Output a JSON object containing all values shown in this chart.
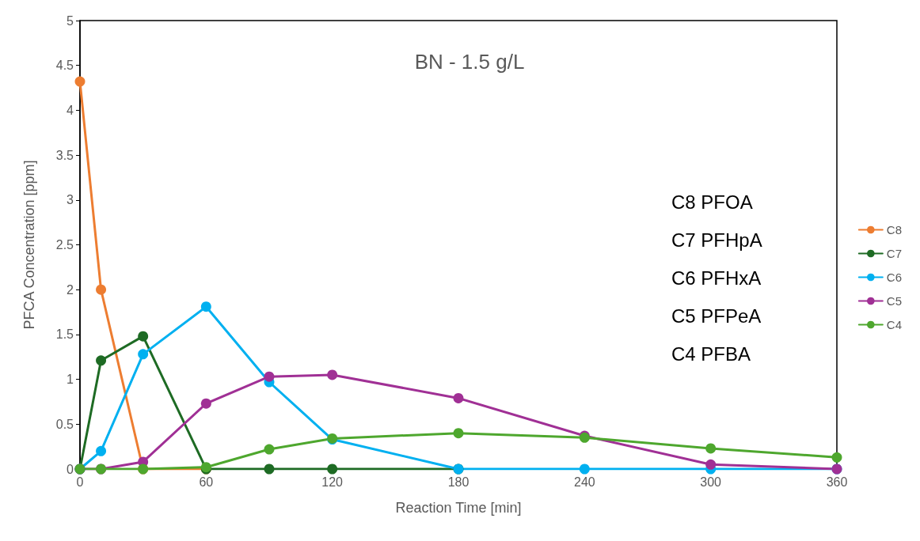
{
  "chart_data": {
    "type": "line",
    "title": "BN - 1.5 g/L",
    "xlabel": "Reaction Time [min]",
    "ylabel": "PFCA Concentration [ppm]",
    "x": [
      0,
      10,
      30,
      60,
      90,
      120,
      180,
      240,
      300,
      360
    ],
    "xlim": [
      0,
      360
    ],
    "xticks": [
      0,
      60,
      120,
      180,
      240,
      300,
      360
    ],
    "ylim": [
      0,
      5
    ],
    "yticks": [
      0,
      0.5,
      1,
      1.5,
      2,
      2.5,
      3,
      3.5,
      4,
      4.5,
      5
    ],
    "grid": false,
    "legend": "right",
    "marker": "circle",
    "line_style": "solid",
    "annotations": [
      "C8 PFOA",
      "C7 PFHpA",
      "C6 PFHxA",
      "C5 PFPeA",
      "C4 PFBA"
    ],
    "series": [
      {
        "name": "C8",
        "color": "#ed7d31",
        "values": [
          4.32,
          2.0,
          0,
          0,
          null,
          null,
          null,
          null,
          null,
          null
        ]
      },
      {
        "name": "C7",
        "color": "#1e6b24",
        "values": [
          0,
          1.21,
          1.48,
          0,
          0,
          0,
          0,
          null,
          null,
          null
        ]
      },
      {
        "name": "C6",
        "color": "#00b0f0",
        "values": [
          0,
          0.2,
          1.28,
          1.81,
          0.97,
          0.33,
          0,
          0,
          0,
          0
        ]
      },
      {
        "name": "C5",
        "color": "#a03095",
        "values": [
          0,
          0,
          0.08,
          0.73,
          1.03,
          1.05,
          0.79,
          0.37,
          0.05,
          0
        ]
      },
      {
        "name": "C4",
        "color": "#4ea72e",
        "values": [
          0,
          0,
          0,
          0.02,
          0.22,
          0.34,
          0.4,
          0.35,
          0.23,
          0.13
        ]
      }
    ]
  }
}
